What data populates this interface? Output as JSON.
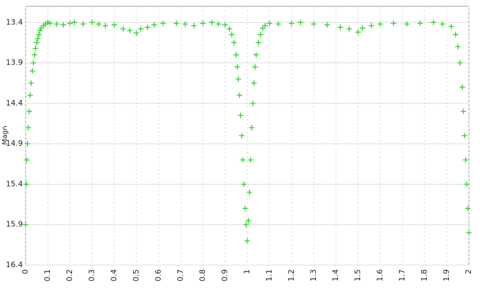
{
  "chart_data": {
    "type": "scatter",
    "y_label": "Magn",
    "color": "#33cc33",
    "grid": true,
    "xlim": [
      0,
      2
    ],
    "ylim": [
      16.4,
      13.2
    ],
    "xticks": [
      0,
      0.1,
      0.2,
      0.3,
      0.4,
      0.5,
      0.6,
      0.7,
      0.8,
      0.9,
      1,
      1.1,
      1.2,
      1.3,
      1.4,
      1.5,
      1.6,
      1.7,
      1.8,
      1.9,
      2
    ],
    "yticks": [
      13.4,
      13.9,
      14.4,
      14.9,
      15.4,
      15.9,
      16.4
    ],
    "x": [
      0,
      0.003,
      0.005,
      0.008,
      0.012,
      0.016,
      0.02,
      0.025,
      0.03,
      0.035,
      0.04,
      0.045,
      0.05,
      0.055,
      0.06,
      0.065,
      0.07,
      0.08,
      0.09,
      0.1,
      0.11,
      0.14,
      0.17,
      0.2,
      0.22,
      0.26,
      0.3,
      0.33,
      0.36,
      0.4,
      0.44,
      0.47,
      0.5,
      0.52,
      0.55,
      0.58,
      0.62,
      0.68,
      0.72,
      0.76,
      0.8,
      0.84,
      0.87,
      0.9,
      0.92,
      0.93,
      0.94,
      0.95,
      0.955,
      0.96,
      0.965,
      0.97,
      0.975,
      0.98,
      0.985,
      0.99,
      0.995,
      1,
      1.005,
      1.01,
      1.015,
      1.02,
      1.025,
      1.03,
      1.035,
      1.04,
      1.05,
      1.06,
      1.07,
      1.08,
      1.1,
      1.14,
      1.2,
      1.24,
      1.3,
      1.36,
      1.42,
      1.46,
      1.5,
      1.52,
      1.56,
      1.6,
      1.66,
      1.72,
      1.78,
      1.84,
      1.88,
      1.92,
      1.94,
      1.95,
      1.96,
      1.97,
      1.975,
      1.98,
      1.985,
      1.99,
      1.995,
      2
    ],
    "values": [
      15.9,
      15.4,
      15.1,
      14.9,
      14.7,
      14.5,
      14.3,
      14.15,
      14.0,
      13.9,
      13.8,
      13.72,
      13.65,
      13.6,
      13.55,
      13.5,
      13.47,
      13.44,
      13.42,
      13.4,
      13.41,
      13.42,
      13.43,
      13.41,
      13.4,
      13.42,
      13.4,
      13.42,
      13.44,
      13.43,
      13.48,
      13.5,
      13.53,
      13.48,
      13.46,
      13.43,
      13.41,
      13.41,
      13.42,
      13.44,
      13.41,
      13.4,
      13.42,
      13.43,
      13.48,
      13.55,
      13.65,
      13.8,
      13.95,
      14.1,
      14.3,
      14.55,
      14.8,
      15.1,
      15.4,
      15.7,
      15.9,
      16.1,
      15.85,
      15.5,
      15.1,
      14.7,
      14.4,
      14.15,
      13.95,
      13.8,
      13.65,
      13.55,
      13.47,
      13.44,
      13.41,
      13.42,
      13.41,
      13.4,
      13.42,
      13.43,
      13.46,
      13.48,
      13.52,
      13.47,
      13.44,
      13.42,
      13.41,
      13.42,
      13.41,
      13.4,
      13.42,
      13.45,
      13.55,
      13.7,
      13.9,
      14.2,
      14.5,
      14.8,
      15.1,
      15.4,
      15.7,
      16.0
    ]
  }
}
